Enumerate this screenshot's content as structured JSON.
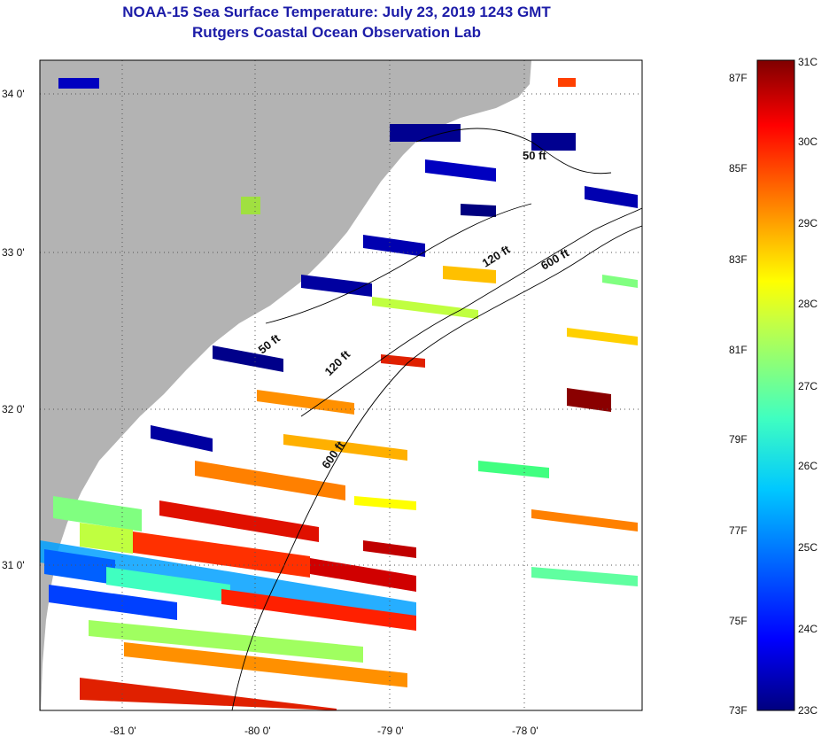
{
  "header": {
    "title_line1": "NOAA-15 Sea Surface Temperature:  July 23, 2019 1243 GMT",
    "title_line2": "Rutgers Coastal Ocean Observation Lab"
  },
  "map": {
    "longitude_labels": [
      "-81 0'",
      "-80 0'",
      "-79 0'",
      "-78 0'"
    ],
    "latitude_labels": [
      "34 0'",
      "33 0'",
      "32 0'",
      "31 0'"
    ],
    "contour_labels": [
      "50 ft",
      "120 ft",
      "600 ft",
      "50 ft",
      "120 ft",
      "600 ft"
    ],
    "colors": {
      "land": "#b3b3b3",
      "ocean_nodata": "#ffffff"
    }
  },
  "colorbar": {
    "fahrenheit_labels": [
      "87F",
      "85F",
      "83F",
      "81F",
      "79F",
      "77F",
      "75F",
      "73F"
    ],
    "celsius_labels": [
      "31C",
      "30C",
      "29C",
      "28C",
      "27C",
      "26C",
      "25C",
      "24C",
      "23C"
    ],
    "gradient": [
      "#00007f",
      "#0000ff",
      "#0080ff",
      "#00ffff",
      "#80ff80",
      "#ffff00",
      "#ff8000",
      "#ff0000",
      "#7f0000"
    ]
  }
}
